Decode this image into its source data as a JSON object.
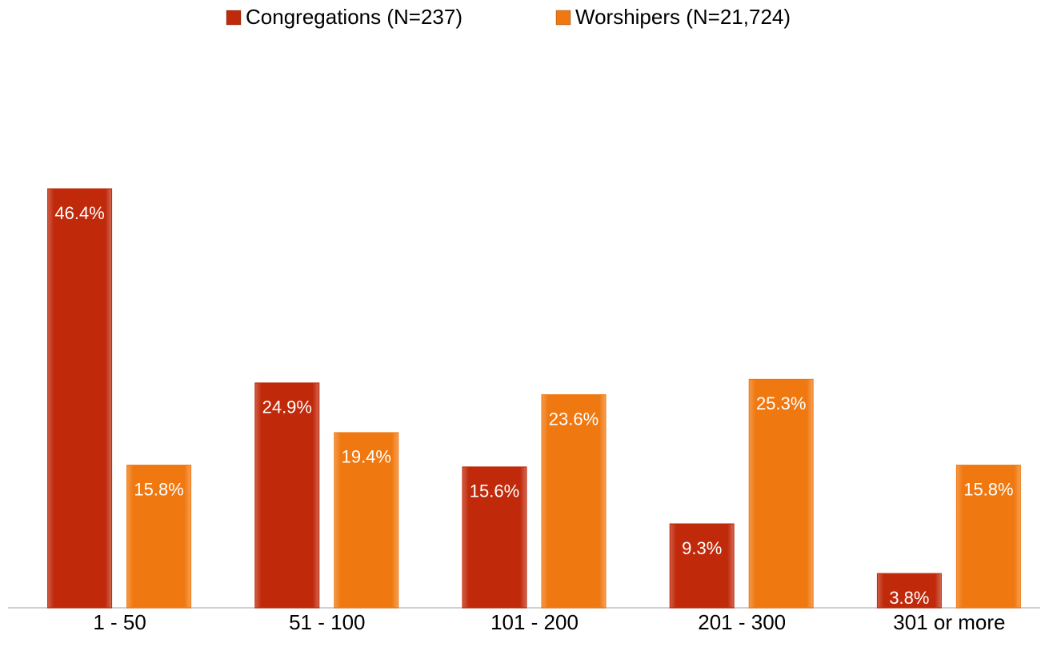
{
  "chart_data": {
    "type": "bar",
    "categories": [
      "1 - 50",
      "51 - 100",
      "101 - 200",
      "201 - 300",
      "301 or more"
    ],
    "series": [
      {
        "name": "Congregations (N=237)",
        "color": "#c0290a",
        "values": [
          46.4,
          24.9,
          15.6,
          9.3,
          3.8
        ],
        "value_labels": [
          "46.4%",
          "24.9%",
          "15.6%",
          "9.3%",
          "3.8%"
        ]
      },
      {
        "name": "Worshipers (N=21,724)",
        "color": "#f07810",
        "values": [
          15.8,
          19.4,
          23.6,
          25.3,
          15.8
        ],
        "value_labels": [
          "15.8%",
          "19.4%",
          "23.6%",
          "25.3%",
          "15.8%"
        ]
      }
    ],
    "legend": "top"
  }
}
